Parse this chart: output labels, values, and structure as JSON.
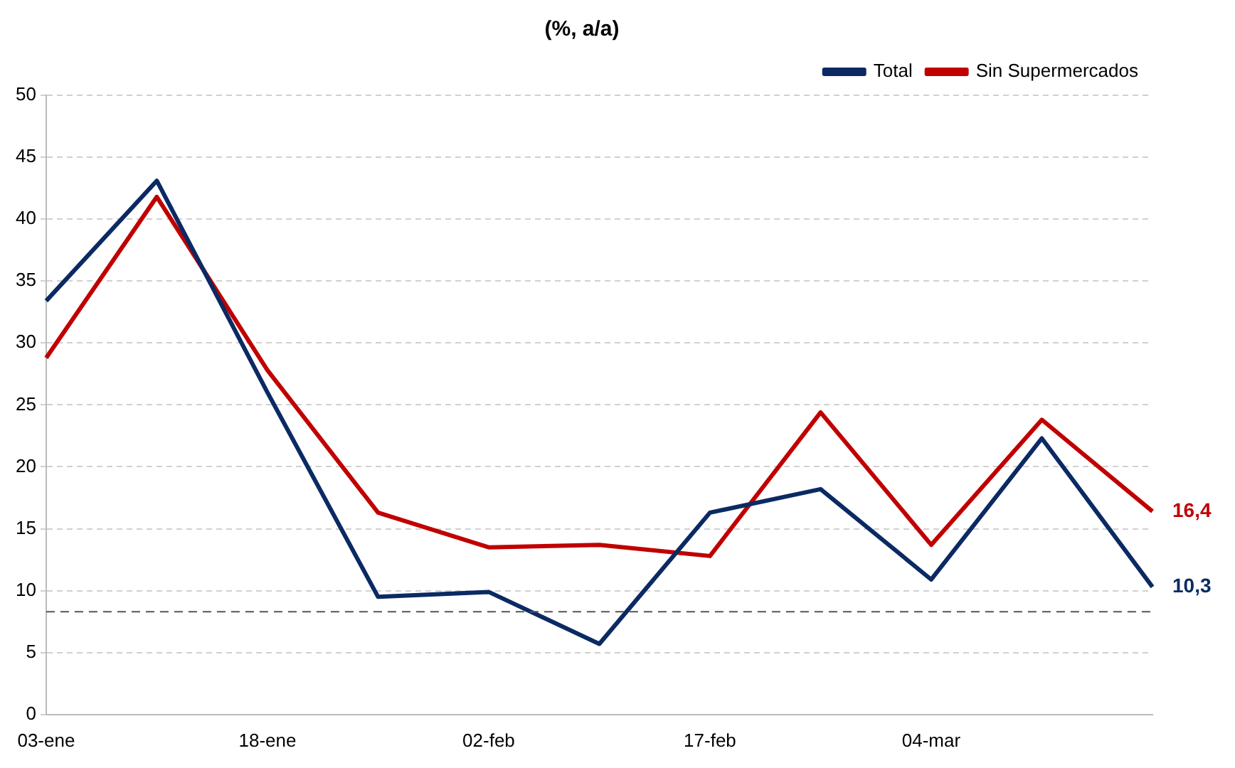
{
  "chart_data": {
    "type": "line",
    "title": "(%, a/a)",
    "categories": [
      "03-ene",
      null,
      "18-ene",
      null,
      "02-feb",
      null,
      "17-feb",
      null,
      "04-mar",
      null,
      null
    ],
    "series": [
      {
        "name": "Total",
        "color": "#0b2a63",
        "values": [
          33.4,
          43.1,
          26,
          9.5,
          9.9,
          5.7,
          16.3,
          18.2,
          10.9,
          22.3,
          10.3
        ],
        "value_labels": [
          null,
          null,
          null,
          null,
          null,
          null,
          null,
          null,
          null,
          null,
          "10,3"
        ]
      },
      {
        "name": "Sin Supermercados",
        "color": "#c00000",
        "values": [
          28.8,
          41.8,
          27.8,
          16.3,
          13.5,
          13.7,
          12.8,
          24.4,
          13.7,
          23.8,
          16.4
        ],
        "value_labels": [
          null,
          null,
          null,
          null,
          null,
          null,
          null,
          null,
          null,
          null,
          "16,4"
        ]
      }
    ],
    "ylim": [
      0,
      50
    ],
    "yticks": [
      0,
      5,
      10,
      15,
      20,
      25,
      30,
      35,
      40,
      45,
      50
    ],
    "grid": "y",
    "legend": "top right",
    "marker": "none",
    "line_style": "solid",
    "ref_lines": [
      {
        "axis": "y",
        "value": 8.3,
        "color": "#555555",
        "line_style": "dashed"
      }
    ]
  }
}
